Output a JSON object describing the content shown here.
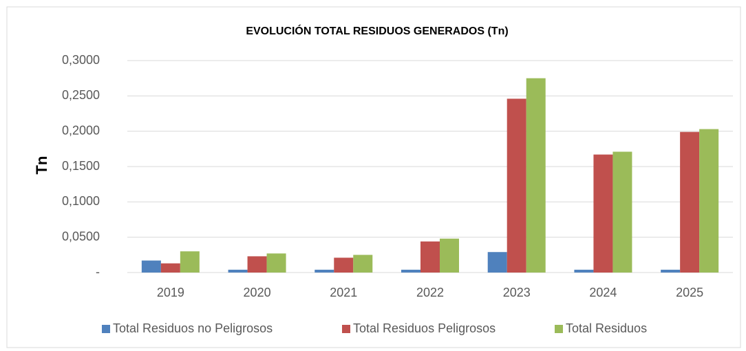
{
  "chart_data": {
    "type": "bar",
    "title": "EVOLUCIÓN TOTAL RESIDUOS GENERADOS (Tn)",
    "y_label": "Tn",
    "categories": [
      "2019",
      "2020",
      "2021",
      "2022",
      "2023",
      "2024",
      "2025"
    ],
    "series": [
      {
        "name": "Total Residuos no Peligrosos",
        "color": "#4f81bd",
        "values": [
          0.017,
          0.004,
          0.004,
          0.004,
          0.029,
          0.004,
          0.004
        ]
      },
      {
        "name": "Total Residuos Peligrosos",
        "color": "#c0504d",
        "values": [
          0.013,
          0.023,
          0.021,
          0.044,
          0.246,
          0.167,
          0.199
        ]
      },
      {
        "name": "Total Residuos",
        "color": "#9bbb59",
        "values": [
          0.03,
          0.027,
          0.025,
          0.048,
          0.275,
          0.171,
          0.203
        ]
      }
    ],
    "ylim": [
      0,
      0.3
    ],
    "yticks": [
      {
        "value": 0,
        "label": "-"
      },
      {
        "value": 0.05,
        "label": "0,0500"
      },
      {
        "value": 0.1,
        "label": "0,1000"
      },
      {
        "value": 0.15,
        "label": "0,1500"
      },
      {
        "value": 0.2,
        "label": "0,2000"
      },
      {
        "value": 0.25,
        "label": "0,2500"
      },
      {
        "value": 0.3,
        "label": "0,3000"
      }
    ],
    "grid": true,
    "legend": "bottom"
  }
}
